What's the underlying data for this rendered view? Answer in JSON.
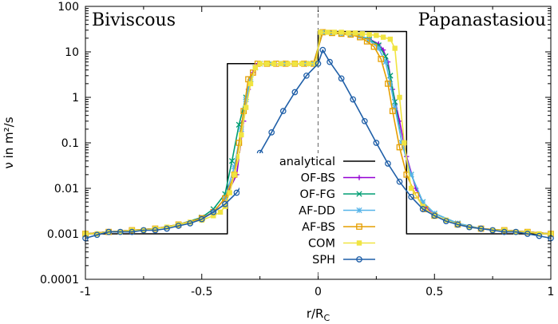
{
  "chart_data": {
    "type": "line",
    "xlabel": "r/R",
    "xlabel_subscript": "C",
    "ylabel": "ν in m²/s",
    "xlim": [
      -1,
      1
    ],
    "ylim": [
      0.0001,
      100
    ],
    "yscale": "log",
    "x_ticks": [
      -1,
      -0.5,
      0,
      0.5,
      1
    ],
    "x_tick_labels": [
      "-1",
      "-0.5",
      "0",
      "0.5",
      "1"
    ],
    "y_ticks": [
      0.0001,
      0.001,
      0.01,
      0.1,
      1,
      10,
      100
    ],
    "y_tick_labels": [
      "0.0001",
      "0.001",
      "0.01",
      "0.1",
      "1",
      "10",
      "100"
    ],
    "annotations": [
      {
        "text": "Biviscous",
        "position": "top-left"
      },
      {
        "text": "Papanastasiou",
        "position": "top-right"
      }
    ],
    "divider_x": 0,
    "legend_position": "center-right",
    "series": [
      {
        "name": "analytical",
        "color": "#000000",
        "marker": "none",
        "x": [
          -1,
          -0.39,
          -0.39,
          0,
          0,
          0.38,
          0.38,
          1
        ],
        "y": [
          0.001,
          0.001,
          5.5,
          5.5,
          28,
          28,
          0.001,
          0.001
        ]
      },
      {
        "name": "OF-BS",
        "color": "#9400d3",
        "marker": "plus",
        "x": [
          -1,
          -0.9,
          -0.8,
          -0.7,
          -0.6,
          -0.5,
          -0.45,
          -0.4,
          -0.35,
          -0.32,
          -0.3,
          -0.28,
          -0.26,
          -0.22,
          -0.18,
          -0.14,
          -0.1,
          -0.06,
          -0.02,
          0.02,
          0.06,
          0.1,
          0.14,
          0.18,
          0.22,
          0.26,
          0.28,
          0.3,
          0.32,
          0.35,
          0.38,
          0.42,
          0.46,
          0.5,
          0.6,
          0.7,
          0.8,
          0.9,
          1
        ],
        "y": [
          0.001,
          0.0011,
          0.0012,
          0.0013,
          0.0016,
          0.0022,
          0.003,
          0.006,
          0.02,
          0.3,
          1.5,
          3.5,
          5.5,
          5.5,
          5.5,
          5.5,
          5.5,
          5.5,
          5.5,
          27,
          26,
          25,
          24,
          22,
          19,
          15,
          11,
          6,
          1.5,
          0.3,
          0.05,
          0.01,
          0.004,
          0.0025,
          0.0016,
          0.0013,
          0.0012,
          0.0011,
          0.001
        ]
      },
      {
        "name": "OF-FG",
        "color": "#009e73",
        "marker": "cross",
        "x": [
          -1,
          -0.9,
          -0.8,
          -0.7,
          -0.6,
          -0.5,
          -0.45,
          -0.4,
          -0.37,
          -0.34,
          -0.31,
          -0.29,
          -0.27,
          -0.25,
          -0.2,
          -0.15,
          -0.1,
          -0.05,
          -0.02,
          0.02,
          0.06,
          0.1,
          0.14,
          0.18,
          0.22,
          0.26,
          0.29,
          0.31,
          0.33,
          0.36,
          0.4,
          0.45,
          0.5,
          0.6,
          0.7,
          0.8,
          0.9,
          1
        ],
        "y": [
          0.001,
          0.0011,
          0.0012,
          0.0013,
          0.0016,
          0.0023,
          0.0035,
          0.0075,
          0.04,
          0.25,
          1.0,
          2.5,
          4.5,
          5.5,
          5.5,
          5.5,
          5.5,
          5.5,
          5.5,
          27,
          26,
          25,
          24,
          22,
          19,
          14,
          8,
          3,
          0.8,
          0.1,
          0.02,
          0.005,
          0.0028,
          0.0017,
          0.0013,
          0.0012,
          0.0011,
          0.001
        ]
      },
      {
        "name": "AF-DD",
        "color": "#56b4e9",
        "marker": "star",
        "x": [
          -1,
          -0.9,
          -0.8,
          -0.7,
          -0.6,
          -0.5,
          -0.45,
          -0.4,
          -0.36,
          -0.33,
          -0.31,
          -0.29,
          -0.27,
          -0.25,
          -0.2,
          -0.15,
          -0.1,
          -0.05,
          -0.02,
          0.02,
          0.06,
          0.1,
          0.14,
          0.18,
          0.22,
          0.26,
          0.29,
          0.31,
          0.33,
          0.36,
          0.4,
          0.45,
          0.5,
          0.6,
          0.7,
          0.8,
          0.9,
          1
        ],
        "y": [
          0.001,
          0.0011,
          0.0012,
          0.0013,
          0.0016,
          0.0022,
          0.003,
          0.006,
          0.03,
          0.2,
          0.9,
          2.5,
          4.5,
          5.5,
          5.5,
          5.5,
          5.5,
          5.5,
          5.5,
          27,
          26,
          25,
          24,
          22,
          18,
          12,
          6,
          2,
          0.6,
          0.1,
          0.02,
          0.005,
          0.0028,
          0.0017,
          0.0013,
          0.0012,
          0.0011,
          0.001
        ]
      },
      {
        "name": "AF-BS",
        "color": "#e69f00",
        "marker": "square-open",
        "x": [
          -1,
          -0.9,
          -0.8,
          -0.7,
          -0.6,
          -0.5,
          -0.45,
          -0.4,
          -0.36,
          -0.34,
          -0.32,
          -0.3,
          -0.28,
          -0.26,
          -0.22,
          -0.18,
          -0.14,
          -0.1,
          -0.06,
          -0.02,
          0.02,
          0.06,
          0.1,
          0.14,
          0.18,
          0.21,
          0.24,
          0.27,
          0.3,
          0.32,
          0.35,
          0.38,
          0.42,
          0.46,
          0.5,
          0.6,
          0.7,
          0.8,
          0.9,
          1
        ],
        "y": [
          0.001,
          0.0011,
          0.0012,
          0.0013,
          0.0016,
          0.0022,
          0.003,
          0.006,
          0.02,
          0.1,
          0.5,
          2.5,
          3.5,
          5.5,
          5.5,
          5.5,
          5.5,
          5.5,
          5.5,
          5.5,
          27,
          26,
          25,
          24,
          21,
          17,
          13,
          7,
          2,
          0.5,
          0.08,
          0.02,
          0.007,
          0.0035,
          0.0025,
          0.0016,
          0.0013,
          0.0012,
          0.0011,
          0.001
        ]
      },
      {
        "name": "COM",
        "color": "#f0e442",
        "marker": "square-filled",
        "x": [
          -1,
          -0.95,
          -0.9,
          -0.85,
          -0.8,
          -0.75,
          -0.7,
          -0.65,
          -0.6,
          -0.55,
          -0.5,
          -0.45,
          -0.42,
          -0.4,
          -0.38,
          -0.36,
          -0.34,
          -0.33,
          -0.31,
          -0.29,
          -0.27,
          -0.25,
          -0.22,
          -0.19,
          -0.16,
          -0.13,
          -0.1,
          -0.07,
          -0.04,
          -0.01,
          0.01,
          0.04,
          0.07,
          0.1,
          0.13,
          0.16,
          0.19,
          0.22,
          0.25,
          0.28,
          0.31,
          0.33,
          0.35,
          0.37,
          0.4,
          0.45,
          0.5,
          0.55,
          0.6,
          0.65,
          0.7,
          0.75,
          0.8,
          0.85,
          0.9,
          0.95,
          1
        ],
        "y": [
          0.001,
          0.001,
          0.0011,
          0.0011,
          0.0012,
          0.0012,
          0.0013,
          0.0014,
          0.0016,
          0.0018,
          0.002,
          0.0025,
          0.003,
          0.004,
          0.008,
          0.02,
          0.05,
          0.15,
          0.6,
          2,
          4.5,
          5.5,
          5.5,
          5.5,
          5.5,
          5.5,
          5.5,
          5.5,
          5.5,
          5.5,
          27,
          27,
          27,
          27,
          26,
          26,
          25,
          24,
          23,
          21,
          19,
          12,
          1,
          0.1,
          0.01,
          0.004,
          0.0025,
          0.002,
          0.0016,
          0.0014,
          0.0013,
          0.0012,
          0.0012,
          0.0011,
          0.0011,
          0.001,
          0.001
        ]
      },
      {
        "name": "SPH",
        "color": "#1f5fa8",
        "marker": "circle-open",
        "x": [
          -1,
          -0.95,
          -0.9,
          -0.85,
          -0.8,
          -0.75,
          -0.7,
          -0.65,
          -0.6,
          -0.55,
          -0.5,
          -0.45,
          -0.4,
          -0.35,
          -0.3,
          -0.25,
          -0.2,
          -0.15,
          -0.1,
          -0.05,
          0,
          0.02,
          0.05,
          0.1,
          0.15,
          0.2,
          0.25,
          0.3,
          0.35,
          0.4,
          0.45,
          0.5,
          0.55,
          0.6,
          0.65,
          0.7,
          0.75,
          0.8,
          0.85,
          0.9,
          0.95,
          1
        ],
        "y": [
          0.0008,
          0.00095,
          0.0011,
          0.0011,
          0.0011,
          0.0012,
          0.0012,
          0.0013,
          0.0015,
          0.0017,
          0.0021,
          0.003,
          0.0045,
          0.008,
          0.02,
          0.06,
          0.17,
          0.5,
          1.3,
          3.0,
          5.5,
          11,
          6,
          2.6,
          0.9,
          0.3,
          0.1,
          0.035,
          0.014,
          0.0065,
          0.0035,
          0.0025,
          0.0019,
          0.0016,
          0.0014,
          0.0013,
          0.0012,
          0.0011,
          0.0011,
          0.001,
          0.0009,
          0.0008
        ]
      }
    ]
  }
}
